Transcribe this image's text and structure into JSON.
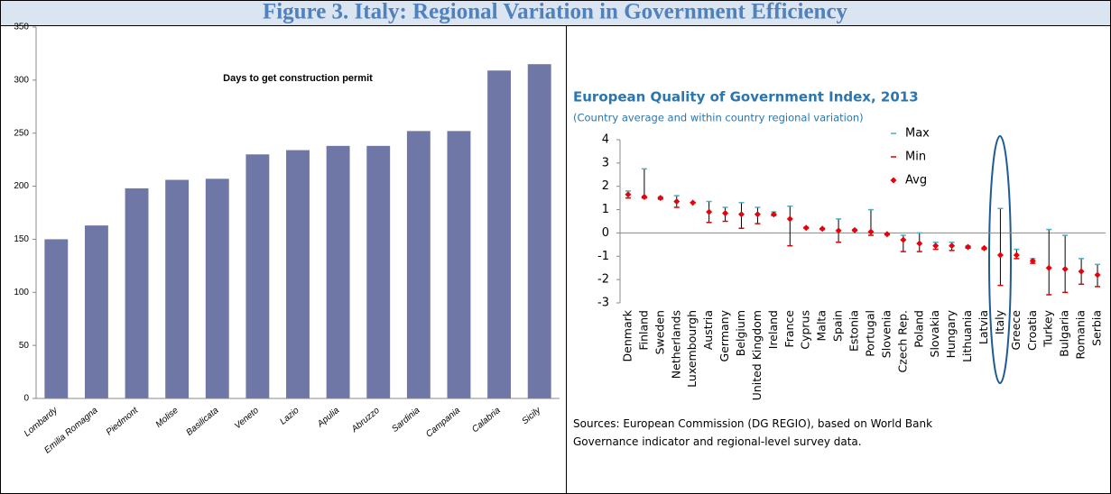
{
  "figure_title": "Figure 3. Italy: Regional Variation in Government Efficiency",
  "chart_data": [
    {
      "type": "bar",
      "title": "Days to get construction permit",
      "categories": [
        "Lombardy",
        "Emilia Romagna",
        "Piedmont",
        "Molise",
        "Basilicata",
        "Veneto",
        "Lazio",
        "Apulia",
        "Abruzzo",
        "Sardinia",
        "Campania",
        "Calabria",
        "Sicily"
      ],
      "values": [
        150,
        163,
        198,
        206,
        207,
        230,
        234,
        238,
        238,
        252,
        252,
        309,
        315
      ],
      "color": "#6f77a6",
      "ylim": [
        0,
        350
      ],
      "yticks": [
        0,
        50,
        100,
        150,
        200,
        250,
        300,
        350
      ]
    },
    {
      "type": "errorbar",
      "title": "European Quality of Government Index, 2013",
      "subtitle": "(Country average and within country regional variation)",
      "note": "Sources: European Commission (DG REGIO), based on World Bank Governance indicator and regional-level survey data.",
      "categories": [
        "Denmark",
        "Finland",
        "Sweden",
        "Netherlands",
        "Luxembourgh",
        "Austria",
        "Germany",
        "Belgium",
        "United Kingdom",
        "Ireland",
        "France",
        "Cyprus",
        "Malta",
        "Spain",
        "Estonia",
        "Portugal",
        "Slovenia",
        "Czech Rep.",
        "Poland",
        "Slovakia",
        "Hungary",
        "Lithuania",
        "Latvia",
        "Italy",
        "Greece",
        "Croatia",
        "Turkey",
        "Bulgaria",
        "Romania",
        "Serbia"
      ],
      "series": [
        {
          "name": "Max",
          "color": "#4bacc6",
          "values": [
            1.8,
            2.75,
            1.55,
            1.6,
            1.3,
            1.35,
            1.1,
            1.3,
            1.1,
            0.9,
            1.15,
            0.25,
            0.2,
            0.6,
            0.15,
            1.0,
            -0.02,
            -0.1,
            0.0,
            -0.4,
            -0.4,
            -0.55,
            -0.62,
            1.05,
            -0.7,
            -1.1,
            0.15,
            -0.1,
            -1.1,
            -1.35
          ]
        },
        {
          "name": "Min",
          "color": "#e00000",
          "values": [
            1.5,
            1.5,
            1.45,
            1.1,
            1.3,
            0.45,
            0.5,
            0.2,
            0.4,
            0.75,
            -0.55,
            0.2,
            0.15,
            -0.4,
            0.1,
            -0.1,
            -0.08,
            -0.8,
            -0.8,
            -0.7,
            -0.75,
            -0.65,
            -0.7,
            -2.25,
            -1.1,
            -1.3,
            -2.65,
            -2.55,
            -2.2,
            -2.3
          ]
        },
        {
          "name": "Avg",
          "color": "#e8000b",
          "values": [
            1.65,
            1.55,
            1.5,
            1.35,
            1.3,
            0.9,
            0.85,
            0.8,
            0.8,
            0.8,
            0.6,
            0.22,
            0.18,
            0.1,
            0.12,
            0.05,
            -0.05,
            -0.3,
            -0.45,
            -0.55,
            -0.55,
            -0.6,
            -0.65,
            -0.95,
            -0.95,
            -1.2,
            -1.5,
            -1.55,
            -1.65,
            -1.8
          ]
        }
      ],
      "ylim": [
        -3,
        4
      ],
      "yticks": [
        -3,
        -2,
        -1,
        0,
        1,
        2,
        3,
        4
      ]
    }
  ]
}
